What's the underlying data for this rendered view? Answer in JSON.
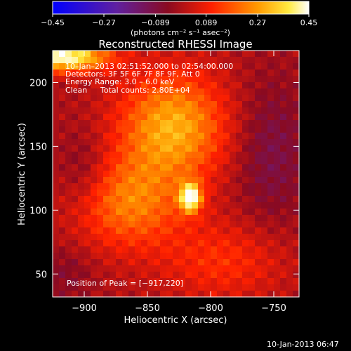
{
  "chart_data": {
    "type": "heatmap",
    "title": "Reconstructed RHESSI Image",
    "xlabel": "Heliocentric X (arcsec)",
    "ylabel": "Heliocentric Y (arcsec)",
    "xlim": [
      -925,
      -730
    ],
    "ylim": [
      32,
      225
    ],
    "xticks": [
      -900,
      -850,
      -800,
      -750
    ],
    "xtick_labels": [
      "−900",
      "−850",
      "−800",
      "−750"
    ],
    "yticks": [
      50,
      100,
      150,
      200
    ],
    "ytick_labels": [
      "50",
      "100",
      "150",
      "200"
    ],
    "colorbar": {
      "range": [
        -0.45,
        0.45
      ],
      "ticks": [
        -0.45,
        -0.27,
        -0.089,
        0.089,
        0.27,
        0.45
      ],
      "tick_labels": [
        "−0.45",
        "−0.27",
        "−0.089",
        "0.089",
        "0.27",
        "0.45"
      ],
      "unit": "(photons cm⁻² s⁻¹ asec⁻²)",
      "colormap": "blue-purple-red-orange-yellow-white"
    },
    "annotations": {
      "time_range": "10–Jan–2013 02:51:52.000 to 02:54:00.000",
      "detectors": "Detectors: 3F 5F 6F 7F 8F 9F, Att 0",
      "energy": "Energy Range: 3.0 – 6.0 keV",
      "method": "Clean",
      "counts": "Total counts: 2.80E+04",
      "peak": "Position of Peak = [−917,220]"
    },
    "sources": [
      {
        "x": -917,
        "y": 220,
        "flux": 0.45,
        "sx": 25,
        "sy": 8
      },
      {
        "x": -816,
        "y": 110,
        "flux": 0.42,
        "sx": 6,
        "sy": 8
      },
      {
        "x": -830,
        "y": 165,
        "flux": 0.3,
        "sx": 30,
        "sy": 30
      },
      {
        "x": -865,
        "y": 105,
        "flux": 0.22,
        "sx": 30,
        "sy": 25
      },
      {
        "x": -790,
        "y": 60,
        "flux": 0.12,
        "sx": 35,
        "sy": 22
      },
      {
        "x": -900,
        "y": 130,
        "flux": -0.08,
        "sx": 14,
        "sy": 22
      },
      {
        "x": -752,
        "y": 145,
        "flux": -0.1,
        "sx": 20,
        "sy": 40
      },
      {
        "x": -915,
        "y": 50,
        "flux": -0.06,
        "sx": 15,
        "sy": 15
      }
    ]
  },
  "footer": {
    "timestamp": "10-Jan-2013 06:47"
  }
}
